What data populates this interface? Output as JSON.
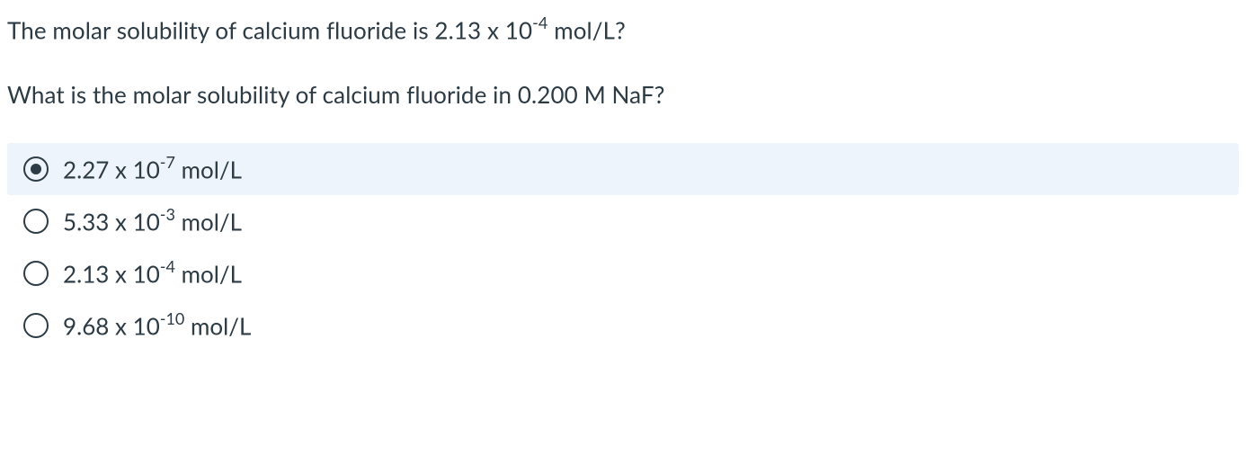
{
  "question": {
    "line1_pre": "The molar solubility of calcium fluoride is 2.13 x 10",
    "line1_exp": "-4",
    "line1_post": " mol/L?",
    "line2": "What is the molar solubility of calcium fluoride in 0.200 M NaF?"
  },
  "options": [
    {
      "pre": "2.27 x 10",
      "exp": "-7",
      "post": " mol/L",
      "selected": true
    },
    {
      "pre": "5.33 x 10",
      "exp": "-3",
      "post": " mol/L",
      "selected": false
    },
    {
      "pre": "2.13 x 10",
      "exp": "-4",
      "post": " mol/L",
      "selected": false
    },
    {
      "pre": "9.68 x 10",
      "exp": "-10",
      "post": " mol/L",
      "selected": false
    }
  ],
  "style": {
    "text_color": "#2d3b45",
    "bg_color": "#ffffff",
    "selected_bg": "#eef4fb",
    "radio_border": "#2d3b45",
    "radio_dot": "#2d3b45",
    "font_size_body": 26,
    "font_size_sup": 18,
    "radio_size": 28,
    "dot_size": 12,
    "option_height": 58
  }
}
